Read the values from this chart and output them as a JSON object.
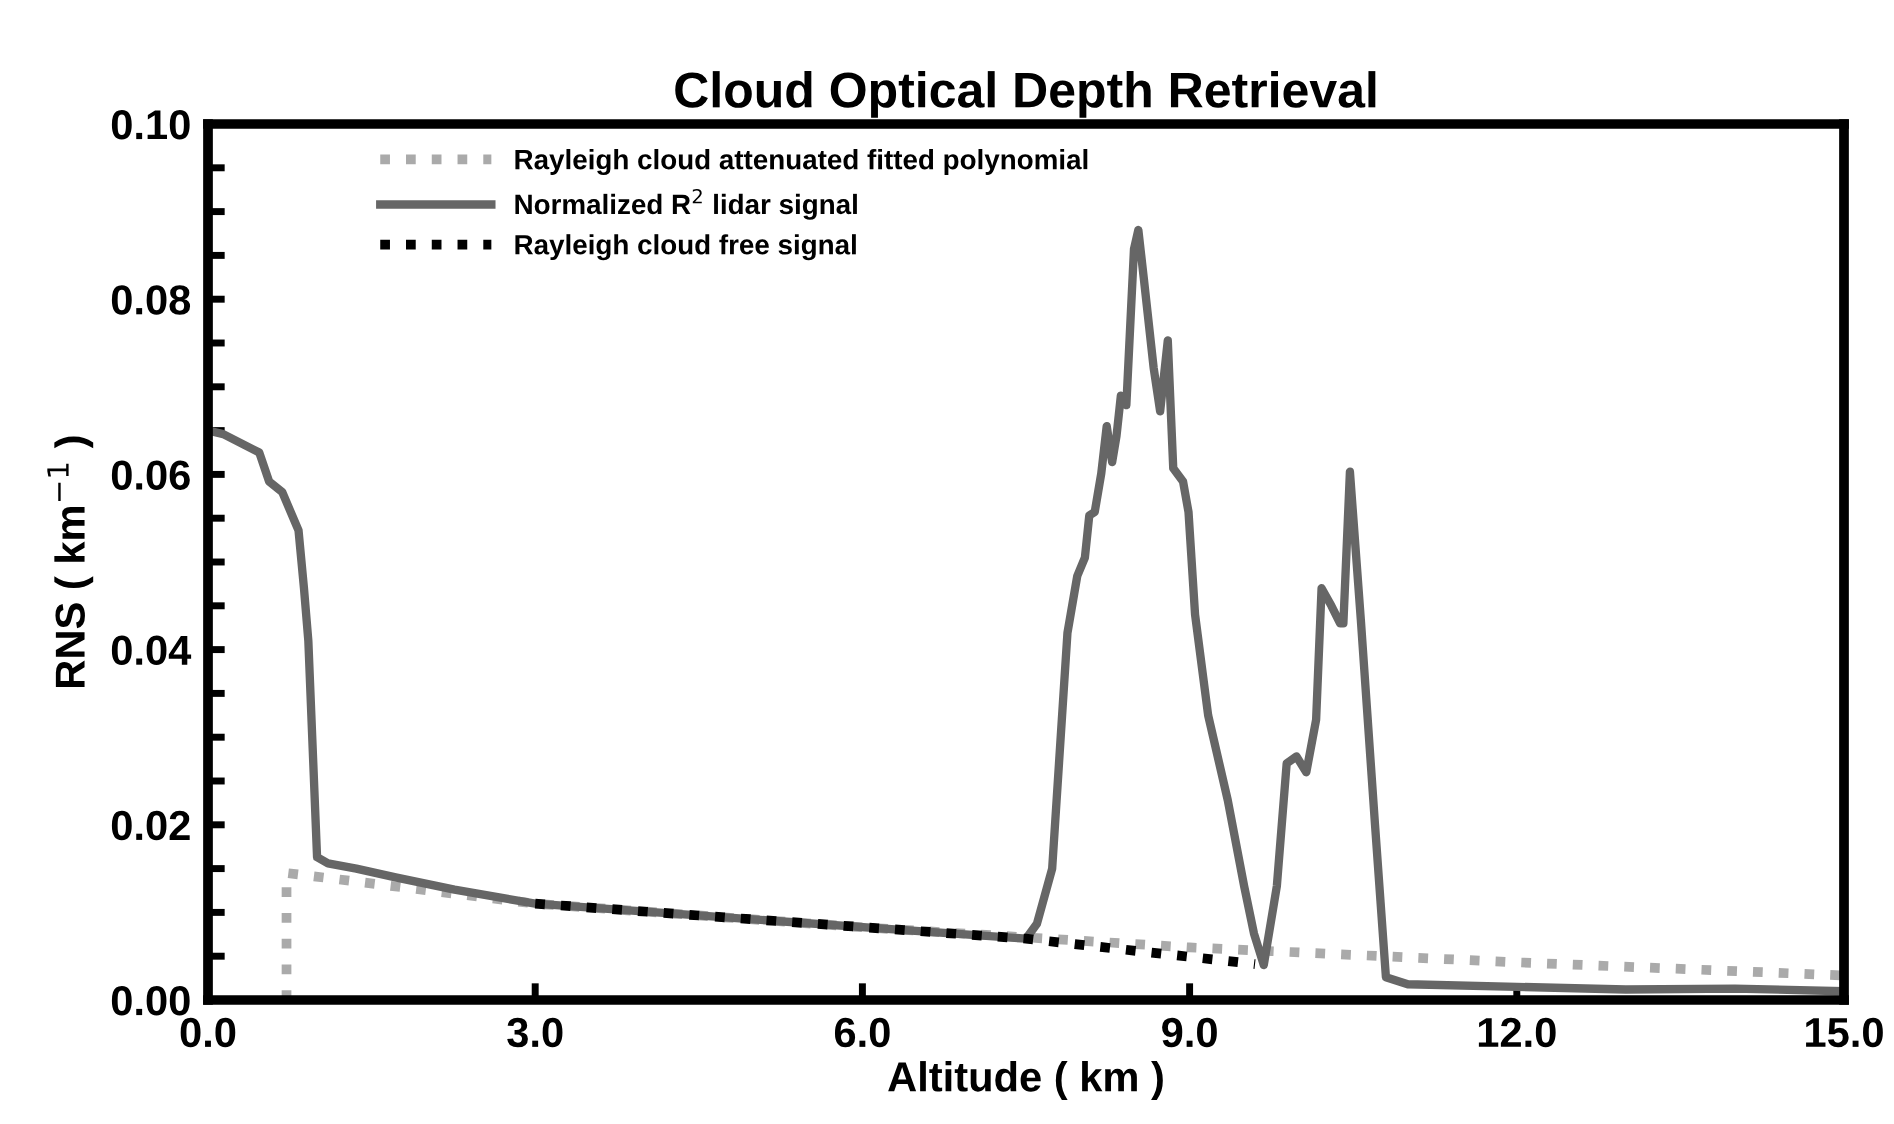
{
  "chart_data": {
    "type": "line",
    "title": "Cloud Optical Depth Retrieval",
    "xlabel": "Altitude ( km )",
    "ylabel": "RNS ( km$^{−1}$ )",
    "xlim": [
      0,
      15
    ],
    "ylim": [
      0,
      0.1
    ],
    "xticks": [
      {
        "value": 0,
        "label": "0.0"
      },
      {
        "value": 3,
        "label": "3.0"
      },
      {
        "value": 6,
        "label": "6.0"
      },
      {
        "value": 9,
        "label": "9.0"
      },
      {
        "value": 12,
        "label": "12.0"
      },
      {
        "value": 15,
        "label": "15.0"
      }
    ],
    "yticks": [
      {
        "value": 0,
        "label": "0.00"
      },
      {
        "value": 0.005,
        "label": null
      },
      {
        "value": 0.01,
        "label": null
      },
      {
        "value": 0.015,
        "label": null
      },
      {
        "value": 0.02,
        "label": "0.02"
      },
      {
        "value": 0.025,
        "label": null
      },
      {
        "value": 0.03,
        "label": null
      },
      {
        "value": 0.035,
        "label": null
      },
      {
        "value": 0.04,
        "label": "0.04"
      },
      {
        "value": 0.045,
        "label": null
      },
      {
        "value": 0.05,
        "label": null
      },
      {
        "value": 0.055,
        "label": null
      },
      {
        "value": 0.06,
        "label": "0.06"
      },
      {
        "value": 0.065,
        "label": null
      },
      {
        "value": 0.07,
        "label": null
      },
      {
        "value": 0.075,
        "label": null
      },
      {
        "value": 0.08,
        "label": "0.08"
      },
      {
        "value": 0.085,
        "label": null
      },
      {
        "value": 0.09,
        "label": null
      },
      {
        "value": 0.095,
        "label": null
      },
      {
        "value": 0.1,
        "label": "0.10"
      }
    ],
    "grid": false,
    "legend": "top left",
    "marker": "none",
    "series": [
      {
        "name": "Rayleigh cloud attenuated fitted polynomial",
        "color": "#aaaaaa",
        "line_style": "dotted",
        "x": [
          0.72,
          0.72,
          3,
          6,
          9,
          12,
          15
        ],
        "values": [
          0,
          0.0145,
          0.011,
          0.0083,
          0.006,
          0.0043,
          0.0028
        ]
      },
      {
        "name": "Normalized R$^{2}$ lidar signal",
        "color": "#666666",
        "line_style": "solid",
        "x": [
          0,
          0.14,
          0.47,
          0.56,
          0.68,
          0.83,
          0.88,
          0.92,
          1.0,
          1.1,
          1.36,
          1.72,
          2.26,
          3.0,
          5.0,
          7.5,
          7.6,
          7.74,
          7.88,
          7.97,
          8.04,
          8.08,
          8.13,
          8.19,
          8.24,
          8.29,
          8.33,
          8.37,
          8.42,
          8.49,
          8.53,
          8.58,
          8.67,
          8.73,
          8.8,
          8.85,
          8.94,
          8.99,
          9.05,
          9.17,
          9.35,
          9.5,
          9.59,
          9.68,
          9.8,
          9.89,
          9.98,
          10.07,
          10.16,
          10.21,
          10.3,
          10.38,
          10.41,
          10.47,
          10.57,
          10.7,
          10.8,
          11.0,
          12.0,
          13.0,
          14.0,
          15.0
        ],
        "values": [
          0.065,
          0.0646,
          0.0625,
          0.0592,
          0.058,
          0.0536,
          0.047,
          0.041,
          0.0163,
          0.0156,
          0.015,
          0.014,
          0.0126,
          0.011,
          0.0092,
          0.007,
          0.0087,
          0.015,
          0.0419,
          0.0484,
          0.0505,
          0.0553,
          0.0557,
          0.0601,
          0.0655,
          0.0614,
          0.0644,
          0.069,
          0.0679,
          0.0857,
          0.0879,
          0.0824,
          0.0722,
          0.0672,
          0.0753,
          0.0607,
          0.0592,
          0.0557,
          0.044,
          0.0325,
          0.0228,
          0.013,
          0.0076,
          0.004,
          0.013,
          0.027,
          0.0278,
          0.026,
          0.032,
          0.047,
          0.045,
          0.043,
          0.043,
          0.0603,
          0.0434,
          0.02,
          0.0026,
          0.0018,
          0.0015,
          0.0012,
          0.0013,
          0.001
        ]
      },
      {
        "name": "Rayleigh cloud free signal",
        "color": "#000000",
        "line_style": "dotted",
        "x": [
          3,
          5,
          7.5,
          9.6
        ],
        "values": [
          0.011,
          0.0092,
          0.007,
          0.0041
        ]
      }
    ]
  }
}
